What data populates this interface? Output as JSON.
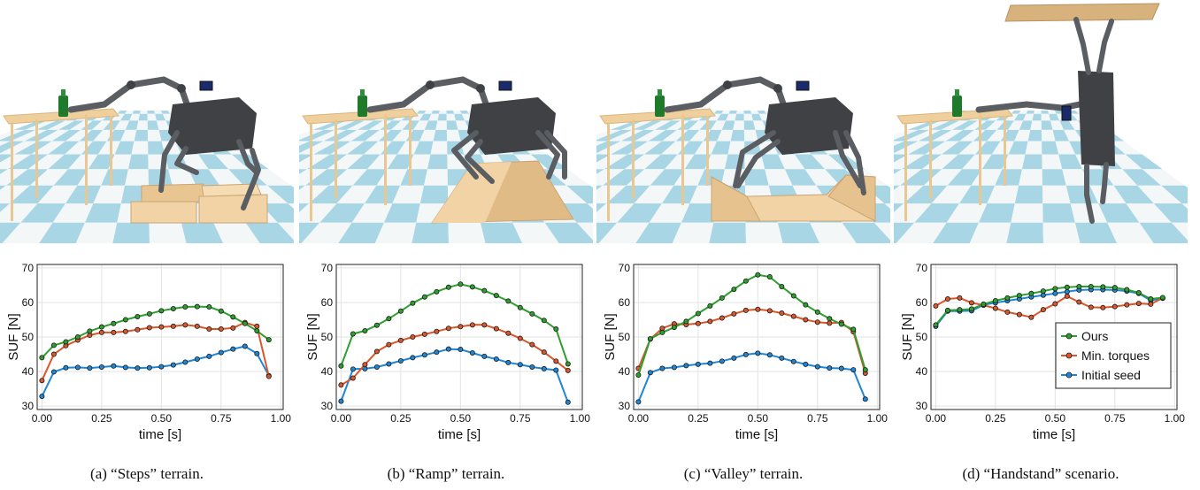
{
  "colors": {
    "ours": "#2e9e2e",
    "min_torques": "#d9572b",
    "initial_seed": "#1f86d6",
    "table": "#efcf9c",
    "terrain": "#f1d3a6",
    "robot": "#3f4144",
    "floor_a": "#a9d6e5",
    "floor_b": "#f4f7f8"
  },
  "legend": {
    "ours": "Ours",
    "min_torques": "Min. torques",
    "initial_seed": "Initial seed"
  },
  "panels": [
    {
      "caption": "(a) “Steps” terrain.",
      "scene": "steps"
    },
    {
      "caption": "(b) “Ramp” terrain.",
      "scene": "ramp"
    },
    {
      "caption": "(c) “Valley” terrain.",
      "scene": "valley"
    },
    {
      "caption": "(d) “Handstand” scenario.",
      "scene": "handstand"
    }
  ],
  "chart_data": [
    {
      "type": "line",
      "xlabel": "time [s]",
      "ylabel": "SUF [N]",
      "xlim": [
        0,
        1.0
      ],
      "ylim": [
        30,
        70
      ],
      "xticks": [
        0.0,
        0.25,
        0.5,
        0.75,
        1.0
      ],
      "xtick_labels": [
        "0.00",
        "0.25",
        "0.50",
        "0.75",
        "1.00"
      ],
      "yticks": [
        30,
        40,
        50,
        60,
        70
      ],
      "x": [
        0.0,
        0.05,
        0.1,
        0.15,
        0.2,
        0.25,
        0.3,
        0.35,
        0.4,
        0.45,
        0.5,
        0.55,
        0.6,
        0.65,
        0.7,
        0.75,
        0.8,
        0.85,
        0.9,
        0.95
      ],
      "series": [
        {
          "key": "ours",
          "values": [
            44.0,
            47.6,
            48.6,
            50.0,
            51.7,
            52.9,
            53.9,
            55.0,
            55.9,
            56.7,
            57.6,
            58.2,
            58.7,
            58.8,
            58.7,
            57.5,
            55.8,
            53.9,
            51.8,
            49.2
          ]
        },
        {
          "key": "min_torques",
          "values": [
            37.4,
            45.0,
            47.5,
            49.1,
            50.5,
            51.3,
            51.3,
            51.6,
            52.1,
            52.7,
            52.9,
            53.1,
            53.5,
            53.1,
            52.3,
            52.3,
            52.6,
            54.2,
            53.1,
            38.6
          ]
        },
        {
          "key": "initial_seed",
          "values": [
            32.8,
            39.9,
            41.1,
            41.2,
            41.0,
            41.3,
            41.6,
            41.2,
            41.0,
            41.1,
            41.4,
            41.9,
            42.7,
            43.6,
            44.4,
            45.5,
            46.5,
            47.3,
            45.2,
            38.8
          ]
        }
      ]
    },
    {
      "type": "line",
      "xlabel": "time [s]",
      "ylabel": "SUF [N]",
      "xlim": [
        0,
        1.0
      ],
      "ylim": [
        30,
        70
      ],
      "xticks": [
        0.0,
        0.25,
        0.5,
        0.75,
        1.0
      ],
      "xtick_labels": [
        "0.00",
        "0.25",
        "0.50",
        "0.75",
        "1.00"
      ],
      "yticks": [
        30,
        40,
        50,
        60,
        70
      ],
      "x": [
        0.0,
        0.05,
        0.1,
        0.15,
        0.2,
        0.25,
        0.3,
        0.35,
        0.4,
        0.45,
        0.5,
        0.55,
        0.6,
        0.65,
        0.7,
        0.75,
        0.8,
        0.85,
        0.9,
        0.95
      ],
      "series": [
        {
          "key": "ours",
          "values": [
            41.6,
            50.9,
            51.8,
            53.4,
            55.3,
            57.5,
            59.8,
            61.6,
            63.1,
            64.4,
            65.3,
            64.5,
            63.4,
            62.0,
            60.4,
            58.5,
            56.7,
            54.8,
            52.3,
            42.2
          ]
        },
        {
          "key": "min_torques",
          "values": [
            36.1,
            38.1,
            42.0,
            45.8,
            47.8,
            49.0,
            50.0,
            50.8,
            51.6,
            52.5,
            53.0,
            53.5,
            53.5,
            52.4,
            51.1,
            49.6,
            47.8,
            45.6,
            43.0,
            40.3
          ]
        },
        {
          "key": "initial_seed",
          "values": [
            31.4,
            40.7,
            40.8,
            41.3,
            42.2,
            43.1,
            44.0,
            44.8,
            45.6,
            46.5,
            46.4,
            45.4,
            44.4,
            43.6,
            42.6,
            42.0,
            41.3,
            40.8,
            40.4,
            31.1
          ]
        }
      ]
    },
    {
      "type": "line",
      "xlabel": "time [s]",
      "ylabel": "SUF [N]",
      "xlim": [
        0,
        1.0
      ],
      "ylim": [
        30,
        70
      ],
      "xticks": [
        0.0,
        0.25,
        0.5,
        0.75,
        1.0
      ],
      "xtick_labels": [
        "0.00",
        "0.25",
        "0.50",
        "0.75",
        "1.00"
      ],
      "yticks": [
        30,
        40,
        50,
        60,
        70
      ],
      "x": [
        0.0,
        0.05,
        0.1,
        0.15,
        0.2,
        0.25,
        0.3,
        0.35,
        0.4,
        0.45,
        0.5,
        0.55,
        0.6,
        0.65,
        0.7,
        0.75,
        0.8,
        0.85,
        0.9,
        0.95
      ],
      "series": [
        {
          "key": "ours",
          "values": [
            39.0,
            49.5,
            51.3,
            52.8,
            54.5,
            56.8,
            59.0,
            61.3,
            63.8,
            66.2,
            68.0,
            67.4,
            64.6,
            61.9,
            59.3,
            57.2,
            55.3,
            53.7,
            52.2,
            40.5
          ]
        },
        {
          "key": "min_torques",
          "values": [
            40.9,
            49.4,
            52.5,
            53.8,
            53.6,
            53.9,
            54.5,
            55.5,
            56.7,
            57.7,
            58.0,
            57.6,
            56.9,
            56.0,
            55.0,
            54.3,
            54.0,
            54.2,
            51.5,
            39.5
          ]
        },
        {
          "key": "initial_seed",
          "values": [
            31.2,
            39.7,
            40.9,
            41.2,
            41.7,
            42.1,
            42.4,
            43.0,
            43.9,
            44.9,
            45.3,
            44.8,
            43.9,
            42.9,
            42.1,
            41.4,
            41.0,
            40.9,
            40.5,
            32.0
          ]
        }
      ]
    },
    {
      "type": "line",
      "xlabel": "time [s]",
      "ylabel": "SUF [N]",
      "xlim": [
        0,
        1.0
      ],
      "ylim": [
        30,
        70
      ],
      "xticks": [
        0.0,
        0.25,
        0.5,
        0.75,
        1.0
      ],
      "xtick_labels": [
        "0.00",
        "0.25",
        "0.50",
        "0.75",
        "1.00"
      ],
      "yticks": [
        30,
        40,
        50,
        60,
        70
      ],
      "legend_position": "bottom-right",
      "x": [
        0.0,
        0.05,
        0.1,
        0.15,
        0.2,
        0.25,
        0.3,
        0.35,
        0.4,
        0.45,
        0.5,
        0.55,
        0.6,
        0.65,
        0.7,
        0.75,
        0.8,
        0.85,
        0.9,
        0.95
      ],
      "series": [
        {
          "key": "ours",
          "values": [
            53.5,
            57.7,
            57.9,
            58.1,
            59.5,
            60.5,
            61.3,
            62.0,
            62.6,
            63.3,
            64.0,
            64.4,
            64.6,
            64.6,
            64.5,
            64.3,
            63.7,
            62.8,
            61.0,
            61.4
          ]
        },
        {
          "key": "min_torques",
          "values": [
            59.0,
            61.0,
            61.3,
            59.9,
            59.2,
            58.3,
            57.2,
            56.5,
            55.7,
            57.9,
            59.6,
            61.8,
            60.1,
            58.6,
            58.5,
            58.8,
            59.3,
            59.7,
            59.5,
            61.3
          ]
        },
        {
          "key": "initial_seed",
          "values": [
            53.1,
            57.5,
            57.5,
            57.6,
            59.3,
            59.9,
            60.5,
            61.0,
            61.6,
            62.1,
            62.6,
            63.1,
            63.6,
            63.7,
            63.7,
            63.6,
            63.3,
            62.6,
            60.6,
            61.2
          ]
        }
      ]
    }
  ]
}
